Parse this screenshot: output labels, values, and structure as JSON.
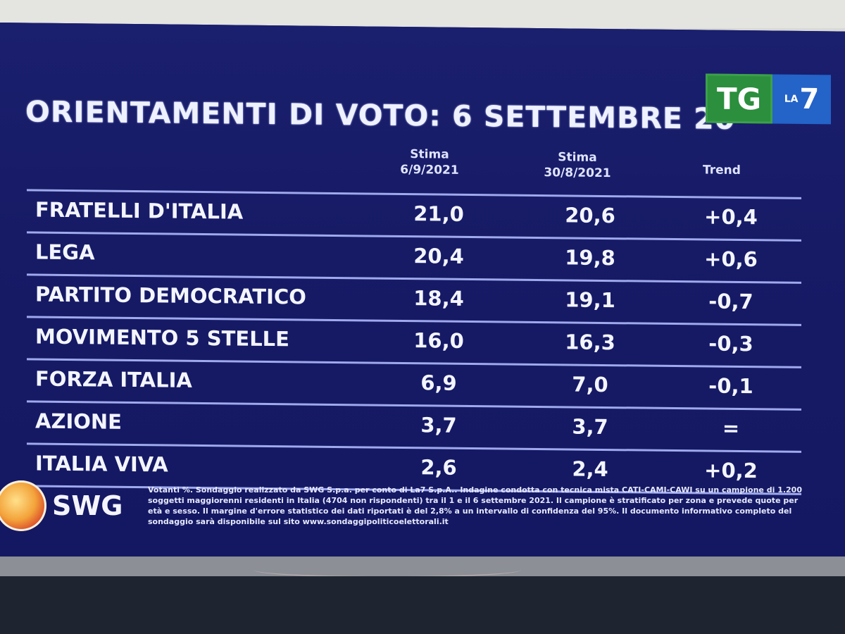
{
  "title": "ORIENTAMENTI DI VOTO: 6 SETTEMBRE 2021",
  "logo": {
    "tg": "TG",
    "la": "LA",
    "seven": "7"
  },
  "headers": {
    "col1_line1": "Stima",
    "col1_line2": "6/9/2021",
    "col2_line1": "Stima",
    "col2_line2": "30/8/2021",
    "col3": "Trend"
  },
  "rows": [
    {
      "party": "FRATELLI D'ITALIA",
      "v1": "21,0",
      "v2": "20,6",
      "trend": "+0,4"
    },
    {
      "party": "LEGA",
      "v1": "20,4",
      "v2": "19,8",
      "trend": "+0,6"
    },
    {
      "party": "PARTITO DEMOCRATICO",
      "v1": "18,4",
      "v2": "19,1",
      "trend": "-0,7"
    },
    {
      "party": "MOVIMENTO 5 STELLE",
      "v1": "16,0",
      "v2": "16,3",
      "trend": "-0,3"
    },
    {
      "party": "FORZA ITALIA",
      "v1": "6,9",
      "v2": "7,0",
      "trend": "-0,1"
    },
    {
      "party": "AZIONE",
      "v1": "3,7",
      "v2": "3,7",
      "trend": "="
    },
    {
      "party": "ITALIA VIVA",
      "v1": "2,6",
      "v2": "2,4",
      "trend": "+0,2"
    }
  ],
  "swg_label": "SWG",
  "footnote": "Votanti %. Sondaggio realizzato da SWG S.p.a. per conto di La7 S.p.A.. Indagine condotta con tecnica mista CATI-CAMI-CAWI su un campione di 1.200 soggetti maggiorenni residenti in Italia (4704 non rispondenti) tra il 1 e il 6 settembre 2021. Il campione è stratificato per zona e prevede quote per età e sesso. Il margine d'errore statistico dei dati riportati è del 2,8% a un intervallo di confidenza del 95%. Il documento informativo completo del sondaggio sarà disponibile sul sito www.sondaggipoliticoelettorali.it"
}
